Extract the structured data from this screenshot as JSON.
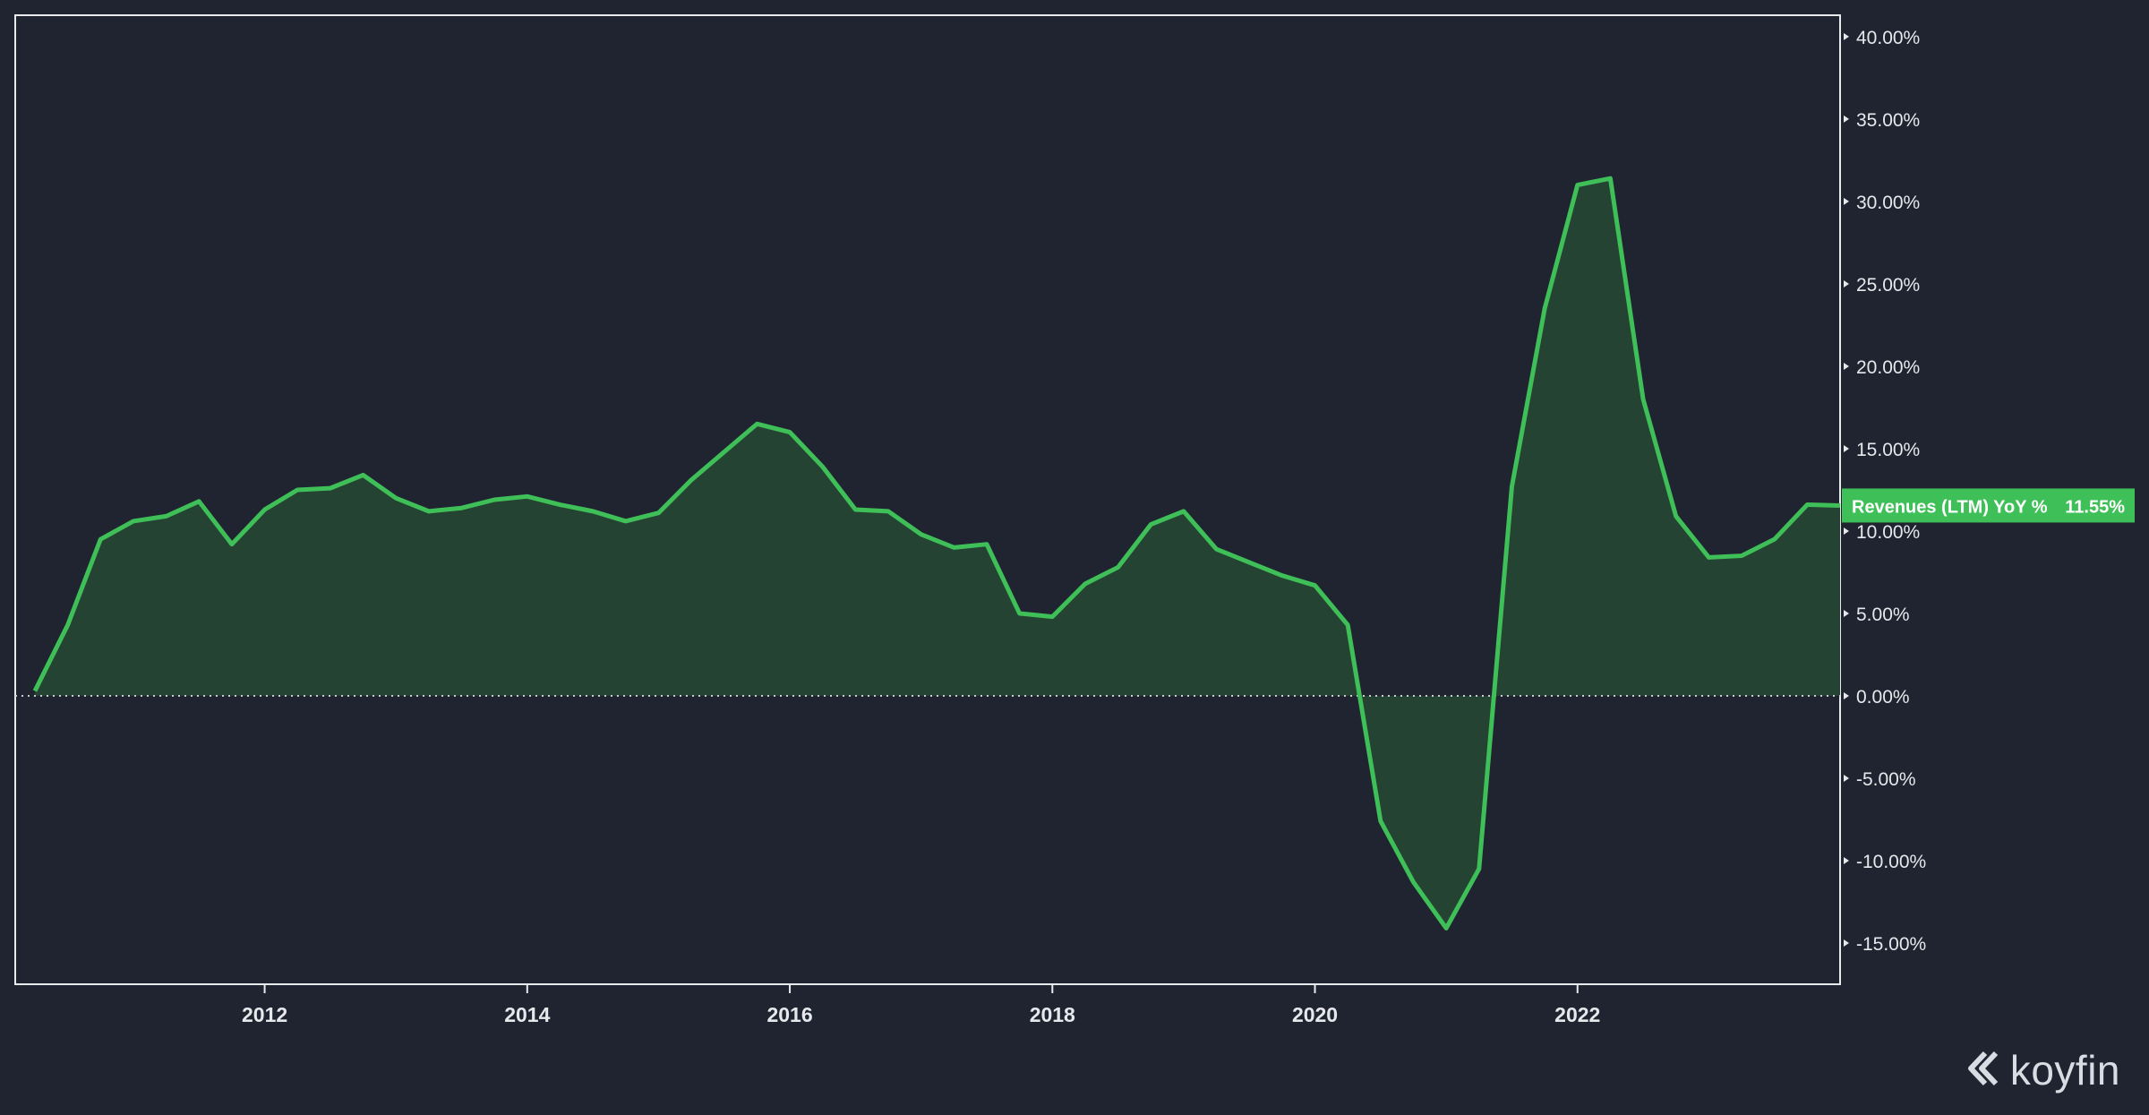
{
  "brand": {
    "name": "koyfin"
  },
  "colors": {
    "background": "#1f2430",
    "line": "#3fbf57",
    "fill": "#244332",
    "text": "#e6e8ec",
    "frame": "#e8eaed"
  },
  "chart_data": {
    "type": "area",
    "title": "",
    "xlabel": "",
    "ylabel": "",
    "series": [
      {
        "name": "Revenues (LTM) YoY %",
        "last_label": "11.55%",
        "points": [
          [
            2010.25,
            0.3
          ],
          [
            2010.5,
            4.3
          ],
          [
            2010.75,
            9.5
          ],
          [
            2011.0,
            10.6
          ],
          [
            2011.25,
            10.9
          ],
          [
            2011.5,
            11.8
          ],
          [
            2011.75,
            9.2
          ],
          [
            2012.0,
            11.3
          ],
          [
            2012.25,
            12.5
          ],
          [
            2012.5,
            12.6
          ],
          [
            2012.75,
            13.4
          ],
          [
            2013.0,
            12.0
          ],
          [
            2013.25,
            11.2
          ],
          [
            2013.5,
            11.4
          ],
          [
            2013.75,
            11.9
          ],
          [
            2014.0,
            12.1
          ],
          [
            2014.25,
            11.6
          ],
          [
            2014.5,
            11.2
          ],
          [
            2014.75,
            10.6
          ],
          [
            2015.0,
            11.1
          ],
          [
            2015.25,
            13.1
          ],
          [
            2015.5,
            14.8
          ],
          [
            2015.75,
            16.5
          ],
          [
            2016.0,
            16.0
          ],
          [
            2016.25,
            13.9
          ],
          [
            2016.5,
            11.3
          ],
          [
            2016.75,
            11.2
          ],
          [
            2017.0,
            9.8
          ],
          [
            2017.25,
            9.0
          ],
          [
            2017.5,
            9.2
          ],
          [
            2017.75,
            5.0
          ],
          [
            2018.0,
            4.8
          ],
          [
            2018.25,
            6.8
          ],
          [
            2018.5,
            7.8
          ],
          [
            2018.75,
            10.4
          ],
          [
            2019.0,
            11.2
          ],
          [
            2019.25,
            8.9
          ],
          [
            2019.5,
            8.1
          ],
          [
            2019.75,
            7.3
          ],
          [
            2020.0,
            6.7
          ],
          [
            2020.25,
            4.3
          ],
          [
            2020.5,
            -7.6
          ],
          [
            2020.75,
            -11.3
          ],
          [
            2021.0,
            -14.1
          ],
          [
            2021.25,
            -10.5
          ],
          [
            2021.5,
            12.7
          ],
          [
            2021.75,
            23.5
          ],
          [
            2022.0,
            31.0
          ],
          [
            2022.25,
            31.4
          ],
          [
            2022.5,
            18.0
          ],
          [
            2022.75,
            10.9
          ],
          [
            2023.0,
            8.4
          ],
          [
            2023.25,
            8.5
          ],
          [
            2023.5,
            9.5
          ],
          [
            2023.75,
            11.6
          ],
          [
            2024.0,
            11.55
          ]
        ]
      }
    ],
    "x_ticks": [
      2012,
      2014,
      2016,
      2018,
      2020,
      2022
    ],
    "x_tick_labels": [
      "2012",
      "2014",
      "2016",
      "2018",
      "2020",
      "2022"
    ],
    "xlim": [
      2010.1,
      2024.0
    ],
    "y_ticks": [
      40,
      35,
      30,
      25,
      20,
      15,
      10,
      5,
      0,
      -5,
      -10,
      -15
    ],
    "y_tick_labels": [
      "40.00%",
      "35.00%",
      "30.00%",
      "25.00%",
      "20.00%",
      "15.00%",
      "10.00%",
      "5.00%",
      "0.00%",
      "-5.00%",
      "-10.00%",
      "-15.00%"
    ],
    "ylim": [
      -17.5,
      41.3
    ],
    "zero_line": "dotted",
    "legend": "right-axis tag",
    "grid": false
  }
}
